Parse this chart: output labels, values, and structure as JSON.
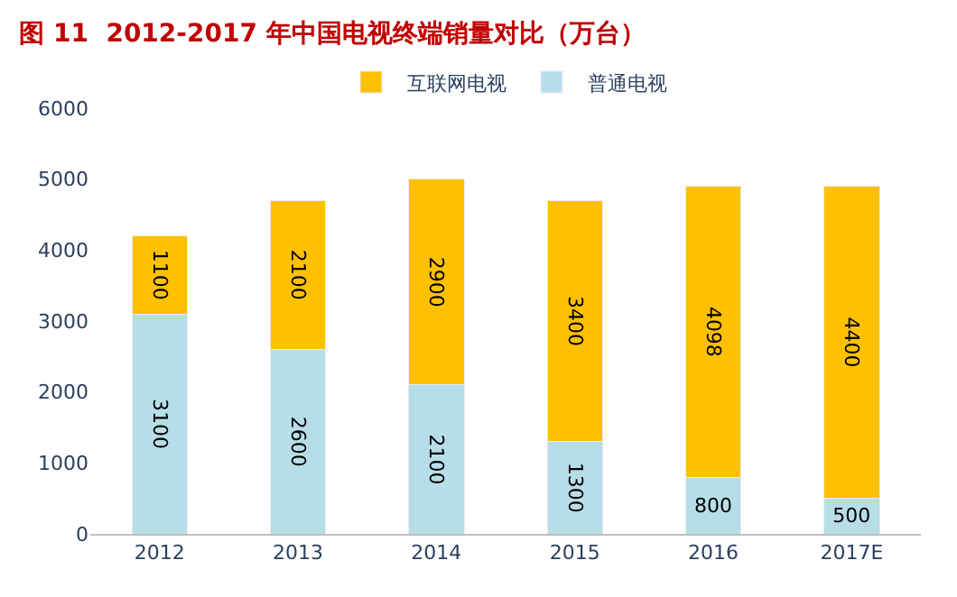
{
  "chart_data": {
    "type": "bar",
    "title": "图 11  2012-2017 年中国电视终端销量对比（万台）",
    "categories": [
      "2012",
      "2013",
      "2014",
      "2015",
      "2016",
      "2017E"
    ],
    "series": [
      {
        "name": "普通电视",
        "color": "#b7dee8",
        "values": [
          3100,
          2600,
          2100,
          1300,
          800,
          500
        ]
      },
      {
        "name": "互联网电视",
        "color": "#ffc000",
        "values": [
          1100,
          2100,
          2900,
          3400,
          4098,
          4400
        ]
      }
    ],
    "stacked": true,
    "data_labels": true,
    "ylim": [
      0,
      6000
    ],
    "yticks": [
      0,
      1000,
      2000,
      3000,
      4000,
      5000,
      6000
    ],
    "grid": false,
    "legend": "top"
  }
}
